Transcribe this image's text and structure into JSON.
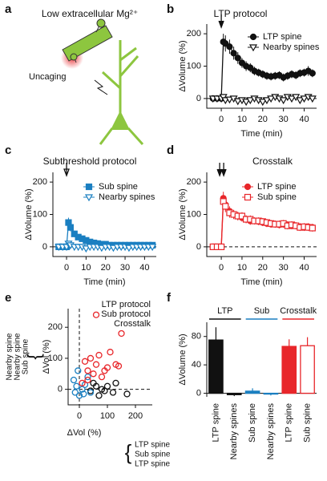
{
  "chart_data": [
    {
      "type": "diagram",
      "panel": "a",
      "title": "Low extracellular Mg²⁺",
      "label": "Uncaging"
    },
    {
      "type": "line",
      "panel": "b",
      "title": "LTP protocol",
      "xlabel": "Time (min)",
      "ylabel": "ΔVolume (%)",
      "x": [
        -4,
        -2,
        0,
        1,
        2,
        4,
        6,
        8,
        10,
        12,
        14,
        16,
        18,
        20,
        22,
        24,
        26,
        28,
        30,
        32,
        34,
        36,
        38,
        40,
        42,
        44
      ],
      "xlim": [
        -7,
        46
      ],
      "xticks": [
        0,
        10,
        20,
        30,
        40
      ],
      "ylim": [
        -30,
        230
      ],
      "yticks": [
        0,
        100,
        200
      ],
      "series": [
        {
          "name": "LTP spine",
          "color": "#111111",
          "marker": "circle",
          "filled": true,
          "values": [
            0,
            0,
            0,
            175,
            170,
            160,
            140,
            125,
            110,
            100,
            95,
            85,
            80,
            75,
            70,
            68,
            70,
            72,
            65,
            70,
            75,
            72,
            78,
            80,
            85,
            78
          ],
          "errors": [
            5,
            5,
            5,
            25,
            25,
            22,
            20,
            18,
            15,
            15,
            14,
            13,
            12,
            12,
            12,
            12,
            12,
            12,
            12,
            12,
            12,
            12,
            12,
            12,
            15,
            12
          ]
        },
        {
          "name": "Nearby spines",
          "color": "#111111",
          "marker": "triangle-down",
          "filled": false,
          "values": [
            0,
            0,
            0,
            5,
            -5,
            -3,
            0,
            -8,
            -5,
            -10,
            -5,
            0,
            -5,
            -10,
            -5,
            0,
            5,
            0,
            -5,
            5,
            0,
            5,
            -5,
            0,
            5,
            0
          ]
        }
      ]
    },
    {
      "type": "line",
      "panel": "c",
      "title": "Subthreshold protocol",
      "title_color": "#1a7fc1",
      "xlabel": "Time (min)",
      "ylabel": "ΔVolume (%)",
      "x": [
        -4,
        -2,
        0,
        1,
        2,
        4,
        6,
        8,
        10,
        12,
        14,
        16,
        18,
        20,
        22,
        24,
        26,
        28,
        30,
        32,
        34,
        36,
        38,
        40,
        42,
        44
      ],
      "xlim": [
        -7,
        46
      ],
      "xticks": [
        0,
        10,
        20,
        30,
        40
      ],
      "ylim": [
        -30,
        230
      ],
      "yticks": [
        0,
        100,
        200
      ],
      "series": [
        {
          "name": "Sub spine",
          "color": "#1a7fc1",
          "marker": "square",
          "filled": true,
          "values": [
            0,
            0,
            0,
            75,
            60,
            40,
            30,
            25,
            20,
            15,
            12,
            10,
            8,
            8,
            5,
            5,
            5,
            5,
            5,
            5,
            5,
            5,
            5,
            5,
            5,
            5
          ],
          "errors": [
            3,
            3,
            3,
            15,
            12,
            10,
            8,
            7,
            6,
            6,
            5,
            5,
            5,
            5,
            5,
            5,
            5,
            5,
            5,
            5,
            5,
            5,
            5,
            5,
            5,
            5
          ]
        },
        {
          "name": "Nearby spines",
          "color": "#1a7fc1",
          "marker": "triangle-down",
          "filled": false,
          "values": [
            0,
            0,
            0,
            10,
            5,
            0,
            0,
            0,
            -5,
            0,
            0,
            0,
            -3,
            0,
            0,
            -3,
            0,
            0,
            0,
            -3,
            0,
            0,
            0,
            0,
            0,
            0
          ]
        }
      ]
    },
    {
      "type": "line",
      "panel": "d",
      "title": "Crosstalk",
      "title_color": "#e8262a",
      "xlabel": "Time (min)",
      "ylabel": "ΔVolume (%)",
      "x": [
        -4,
        -2,
        0,
        1,
        2,
        4,
        6,
        8,
        10,
        12,
        14,
        16,
        18,
        20,
        22,
        24,
        26,
        28,
        30,
        32,
        34,
        36,
        38,
        40,
        42,
        44
      ],
      "xlim": [
        -7,
        46
      ],
      "xticks": [
        0,
        10,
        20,
        30,
        40
      ],
      "ylim": [
        -30,
        230
      ],
      "yticks": [
        0,
        100,
        200
      ],
      "series": [
        {
          "name": "LTP spine",
          "color": "#e8262a",
          "marker": "circle",
          "filled": true,
          "values": [
            0,
            0,
            0,
            150,
            130,
            110,
            100,
            95,
            90,
            85,
            80,
            80,
            78,
            75,
            72,
            70,
            70,
            68,
            70,
            68,
            65,
            65,
            62,
            60,
            62,
            60
          ],
          "errors": [
            4,
            4,
            4,
            20,
            18,
            15,
            14,
            13,
            12,
            12,
            12,
            11,
            11,
            11,
            11,
            11,
            11,
            11,
            11,
            11,
            11,
            11,
            11,
            11,
            11,
            11
          ]
        },
        {
          "name": "Sub spine",
          "color": "#e8262a",
          "marker": "square",
          "filled": false,
          "values": [
            0,
            0,
            0,
            140,
            125,
            105,
            100,
            95,
            95,
            85,
            85,
            80,
            80,
            78,
            75,
            72,
            70,
            70,
            72,
            65,
            68,
            65,
            60,
            62,
            60,
            58
          ],
          "errors": [
            4,
            4,
            4,
            20,
            18,
            15,
            14,
            13,
            12,
            12,
            12,
            11,
            11,
            11,
            11,
            11,
            11,
            11,
            11,
            11,
            11,
            11,
            11,
            11,
            11,
            11
          ]
        }
      ]
    },
    {
      "type": "scatter",
      "panel": "e",
      "xlabel": "ΔVol (%)",
      "ylabel": "ΔVol (%)",
      "ylabel_parts": [
        "Nearby spine",
        "Nearby spine",
        "Sub spine"
      ],
      "xlabel_parts": [
        "LTP spine",
        "Sub spine",
        "LTP spine"
      ],
      "xlim": [
        -40,
        260
      ],
      "xticks": [
        0,
        100,
        200
      ],
      "ylim": [
        -50,
        260
      ],
      "yticks": [
        0,
        100,
        200
      ],
      "series": [
        {
          "name": "LTP protocol",
          "color": "#111111",
          "x": [
            40,
            60,
            70,
            80,
            100,
            120,
            130,
            170,
            50,
            90
          ],
          "values": [
            -5,
            10,
            -20,
            0,
            10,
            -10,
            20,
            -15,
            20,
            -5
          ]
        },
        {
          "name": "Sub protocol",
          "color": "#1a7fc1",
          "x": [
            -20,
            -10,
            -15,
            0,
            10,
            20,
            30,
            -5,
            40,
            15
          ],
          "values": [
            30,
            10,
            -10,
            -20,
            0,
            15,
            40,
            60,
            -10,
            -15
          ]
        },
        {
          "name": "Crosstalk",
          "color": "#e8262a",
          "x": [
            20,
            30,
            40,
            50,
            60,
            70,
            80,
            90,
            100,
            110,
            130,
            140,
            150,
            60,
            30,
            10
          ],
          "values": [
            90,
            60,
            100,
            50,
            80,
            110,
            40,
            60,
            70,
            120,
            80,
            75,
            180,
            240,
            30,
            20
          ]
        }
      ]
    },
    {
      "type": "bar",
      "panel": "f",
      "ylabel": "ΔVolume (%)",
      "categories": [
        "LTP spine",
        "Nearby spines",
        "Sub spine",
        "Nearby spines",
        "LTP spine",
        "Sub spine"
      ],
      "values": [
        75,
        -2,
        3,
        -1,
        66,
        67
      ],
      "errors": [
        18,
        2,
        4,
        2,
        10,
        12
      ],
      "colors": [
        "#111111",
        "#111111",
        "#1a7fc1",
        "#1a7fc1",
        "#e8262a",
        "#e8262a"
      ],
      "filled": [
        true,
        true,
        true,
        true,
        true,
        false
      ],
      "groups": [
        {
          "name": "LTP",
          "color": "#111111"
        },
        {
          "name": "Sub",
          "color": "#1a7fc1"
        },
        {
          "name": "Crosstalk",
          "color": "#e8262a"
        }
      ],
      "ylim": [
        -5,
        100
      ],
      "yticks": [
        0,
        40,
        80
      ]
    }
  ]
}
